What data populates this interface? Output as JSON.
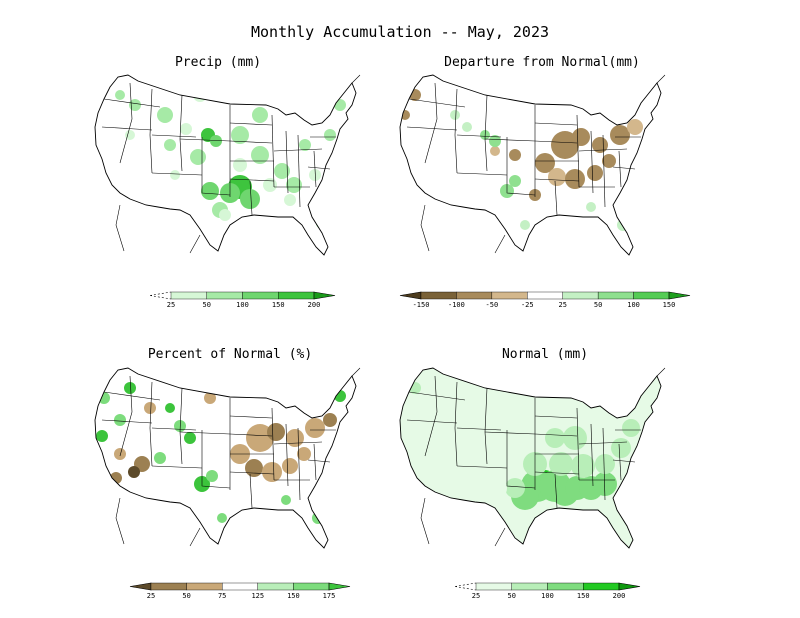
{
  "title": "Monthly Accumulation -- May, 2023",
  "chart_data": [
    {
      "type": "heatmap",
      "title": "Precip (mm)",
      "region": "Contiguous United States",
      "colorbar": {
        "tick_labels": [
          "25",
          "50",
          "100",
          "150",
          "200"
        ],
        "bins": [
          {
            "range": "<25",
            "color": "#ffffff",
            "dashed": true
          },
          {
            "range": "25-50",
            "color": "#d6f7d6"
          },
          {
            "range": "50-100",
            "color": "#a6eaa6"
          },
          {
            "range": "100-150",
            "color": "#6fd66f"
          },
          {
            "range": "150-200",
            "color": "#3ec43e"
          },
          {
            "range": ">200",
            "color": "#1a9a1a"
          }
        ]
      }
    },
    {
      "type": "heatmap",
      "title": "Departure from Normal(mm)",
      "region": "Contiguous United States",
      "colorbar": {
        "tick_labels": [
          "-150",
          "-100",
          "-50",
          "-25",
          "25",
          "50",
          "100",
          "150"
        ],
        "bins": [
          {
            "range": "<-150",
            "color": "#4d3c1d"
          },
          {
            "range": "-150 to -100",
            "color": "#7a6238"
          },
          {
            "range": "-100 to -50",
            "color": "#a88b5c"
          },
          {
            "range": "-50 to -25",
            "color": "#d3b78c"
          },
          {
            "range": "-25 to 25",
            "color": "#ffffff"
          },
          {
            "range": "25-50",
            "color": "#c4f0c4"
          },
          {
            "range": "50-100",
            "color": "#8fe08f"
          },
          {
            "range": "100-150",
            "color": "#55cc55"
          },
          {
            "range": ">150",
            "color": "#1e9e1e"
          }
        ]
      }
    },
    {
      "type": "heatmap",
      "title": "Percent of Normal (%)",
      "region": "Contiguous United States",
      "colorbar": {
        "tick_labels": [
          "25",
          "50",
          "75",
          "125",
          "150",
          "175"
        ],
        "bins": [
          {
            "range": "<25",
            "color": "#5c4a2a"
          },
          {
            "range": "25-50",
            "color": "#9c8052"
          },
          {
            "range": "50-75",
            "color": "#c9a878"
          },
          {
            "range": "75-125",
            "color": "#ffffff"
          },
          {
            "range": "125-150",
            "color": "#b9eeb9"
          },
          {
            "range": "150-175",
            "color": "#7ddc7d"
          },
          {
            "range": ">175",
            "color": "#3cc43c"
          }
        ]
      }
    },
    {
      "type": "heatmap",
      "title": "Normal (mm)",
      "region": "Contiguous United States",
      "colorbar": {
        "tick_labels": [
          "25",
          "50",
          "100",
          "150",
          "200"
        ],
        "bins": [
          {
            "range": "<25",
            "color": "#ffffff",
            "dashed": true
          },
          {
            "range": "25-50",
            "color": "#e6fae6"
          },
          {
            "range": "50-100",
            "color": "#b8eeb8"
          },
          {
            "range": "100-150",
            "color": "#7fdc7f"
          },
          {
            "range": "150-200",
            "color": "#22c922"
          },
          {
            "range": ">200",
            "color": "#0f990f"
          }
        ]
      }
    }
  ]
}
